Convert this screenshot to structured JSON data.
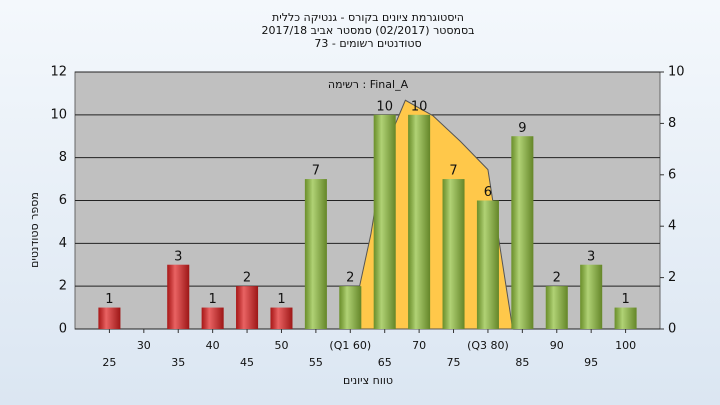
{
  "chart_data": {
    "type": "bar",
    "title": [
      "היסטוגרמת ציונים בקורס - גנטיקה כללית",
      "בסמסטר (02/2017)  סמסטר אביב 2017/18",
      "סטודנטים רשומים - 73"
    ],
    "annotation": "רשימה : Final_A",
    "xlabel": "טווח ציונים",
    "ylabel": "מספר סטודנטים",
    "x": [
      25,
      30,
      35,
      40,
      45,
      50,
      55,
      60,
      65,
      70,
      75,
      80,
      85,
      90,
      95,
      100
    ],
    "values": [
      1,
      null,
      3,
      1,
      2,
      1,
      7,
      2,
      10,
      10,
      7,
      6,
      9,
      2,
      3,
      1
    ],
    "colors": [
      "#e02020",
      "#e02020",
      "#e02020",
      "#e02020",
      "#e02020",
      "#e02020",
      "#8fbf3a",
      "#8fbf3a",
      "#8fbf3a",
      "#8fbf3a",
      "#8fbf3a",
      "#8fbf3a",
      "#8fbf3a",
      "#8fbf3a",
      "#8fbf3a",
      "#8fbf3a"
    ],
    "area": {
      "x": [
        60,
        63,
        65,
        68,
        72,
        76,
        80,
        83.6
      ],
      "values": [
        0,
        3.7,
        7,
        8.9,
        8.3,
        7.3,
        6.2,
        0
      ],
      "color": "#ffc84a",
      "axis": "y2"
    },
    "xlim": [
      20,
      105
    ],
    "xticks": [
      25,
      30,
      35,
      40,
      45,
      50,
      55,
      {
        "value": 60,
        "label": "(Q1 60)"
      },
      65,
      70,
      75,
      {
        "value": 80,
        "label": "(Q3 80)"
      },
      85,
      90,
      95,
      100
    ],
    "ylim": [
      0,
      12
    ],
    "yticks": [
      0,
      2,
      4,
      6,
      8,
      10,
      12
    ],
    "y2lim": [
      0,
      10
    ],
    "y2ticks": [
      0,
      2,
      4,
      6,
      8,
      10
    ],
    "grid": true
  }
}
